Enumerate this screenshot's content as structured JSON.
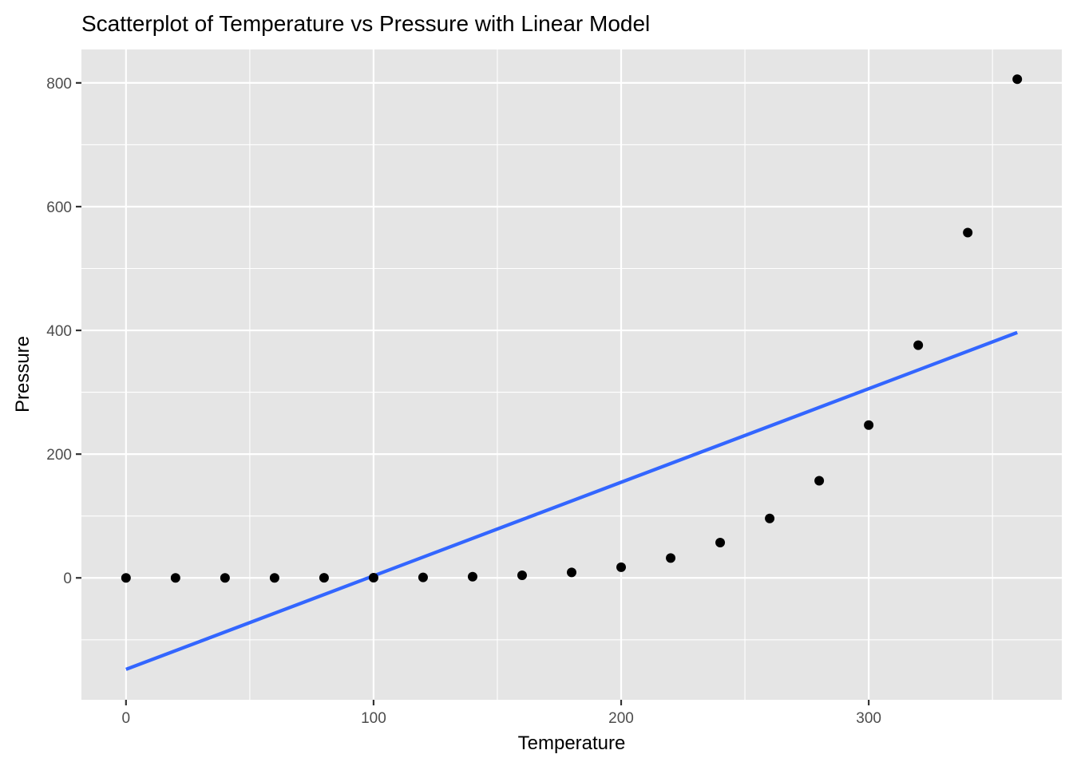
{
  "chart_data": {
    "type": "scatter",
    "title": "Scatterplot of Temperature vs Pressure with Linear Model",
    "xlabel": "Temperature",
    "ylabel": "Pressure",
    "xlim": [
      -18,
      378
    ],
    "ylim": [
      -197,
      854
    ],
    "x_ticks": [
      0,
      100,
      200,
      300
    ],
    "x_tick_labels": [
      "0",
      "100",
      "200",
      "300"
    ],
    "x_minor_ticks": [
      50,
      150,
      250,
      350
    ],
    "y_ticks": [
      0,
      200,
      400,
      600,
      800
    ],
    "y_tick_labels": [
      "0",
      "200",
      "400",
      "600",
      "800"
    ],
    "y_minor_ticks": [
      -100,
      100,
      300,
      500,
      700
    ],
    "grid": true,
    "legend": "none",
    "series": [
      {
        "name": "points",
        "kind": "scatter",
        "color": "#000000",
        "x": [
          0,
          20,
          40,
          60,
          80,
          100,
          120,
          140,
          160,
          180,
          200,
          220,
          240,
          260,
          280,
          300,
          320,
          340,
          360
        ],
        "y": [
          0.0002,
          0.0012,
          0.006,
          0.03,
          0.09,
          0.27,
          0.75,
          1.85,
          4.2,
          8.8,
          17.3,
          32.1,
          57.0,
          96.0,
          157.0,
          247.0,
          376.0,
          558.0,
          806.0
        ]
      },
      {
        "name": "linear model",
        "kind": "line",
        "color": "#3366FF",
        "x": [
          0,
          360
        ],
        "y": [
          -147.9,
          396.5
        ]
      }
    ],
    "colors": {
      "panel_background": "#E5E5E5",
      "grid_major": "#FFFFFF",
      "tick_color": "#333333"
    }
  }
}
